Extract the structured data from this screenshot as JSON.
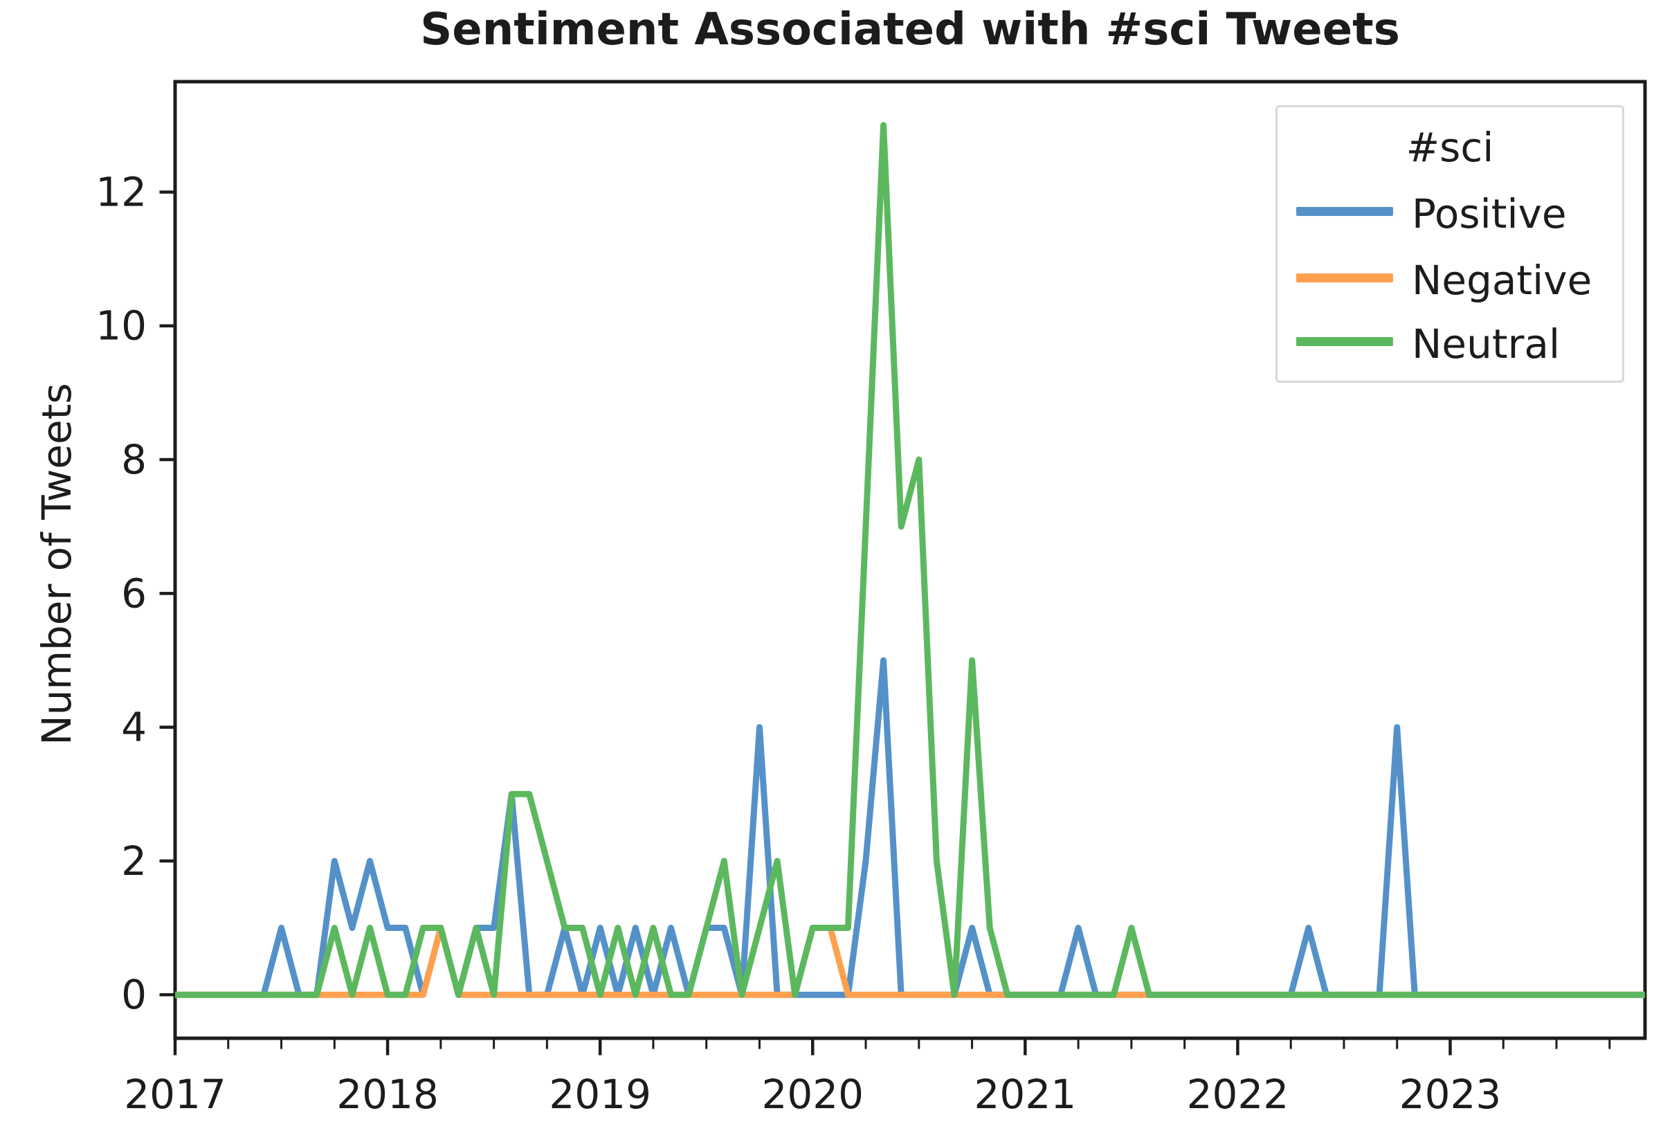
{
  "title": "Sentiment Associated with #sci Tweets",
  "ylabel": "Number of Tweets",
  "legend": {
    "title": "#sci",
    "entries": [
      {
        "label": "Positive",
        "color": "#5591c9"
      },
      {
        "label": "Negative",
        "color": "#ffa04f"
      },
      {
        "label": "Neutral",
        "color": "#5cb85f"
      }
    ]
  },
  "colors": {
    "positive": "#5591c9",
    "negative": "#ffa04f",
    "neutral": "#5cb85f",
    "axis": "#1c1c1c",
    "legend_border": "#d9d9d9",
    "background": "#ffffff"
  },
  "chart_data": {
    "type": "line",
    "title": "Sentiment Associated with #sci Tweets",
    "xlabel": "",
    "ylabel": "Number of Tweets",
    "x_start": "2017-01",
    "x_end": "2023-12",
    "frequency": "monthly",
    "x_tick_labels": [
      "2017",
      "2018",
      "2019",
      "2020",
      "2021",
      "2022",
      "2023"
    ],
    "x_minor_tick_interval_months": 3,
    "y_ticks": [
      0,
      2,
      4,
      6,
      8,
      10,
      12
    ],
    "ylim": [
      -0.65,
      13.65
    ],
    "grid": false,
    "legend_position": "upper right",
    "series": [
      {
        "name": "Positive",
        "color": "#5591c9",
        "values": [
          0,
          0,
          0,
          0,
          0,
          0,
          1,
          0,
          0,
          2,
          1,
          2,
          1,
          1,
          0,
          1,
          0,
          1,
          1,
          3,
          0,
          0,
          1,
          0,
          1,
          0,
          1,
          0,
          1,
          0,
          1,
          1,
          0,
          4,
          0,
          0,
          0,
          0,
          0,
          2,
          5,
          0,
          0,
          0,
          0,
          1,
          0,
          0,
          0,
          0,
          0,
          1,
          0,
          0,
          0,
          0,
          0,
          0,
          0,
          0,
          0,
          0,
          0,
          0,
          1,
          0,
          0,
          0,
          0,
          4,
          0,
          0,
          0,
          0,
          0,
          0,
          0,
          0,
          0,
          0,
          0,
          0,
          0,
          0
        ]
      },
      {
        "name": "Negative",
        "color": "#ffa04f",
        "values": [
          0,
          0,
          0,
          0,
          0,
          0,
          0,
          0,
          0,
          0,
          0,
          0,
          0,
          0,
          0,
          1,
          0,
          0,
          0,
          0,
          0,
          0,
          0,
          0,
          0,
          0,
          0,
          0,
          0,
          0,
          0,
          0,
          0,
          0,
          0,
          0,
          1,
          1,
          0,
          0,
          0,
          0,
          0,
          0,
          0,
          0,
          0,
          0,
          0,
          0,
          0,
          0,
          0,
          0,
          0,
          0,
          0,
          0,
          0,
          0,
          0,
          0,
          0,
          0,
          0,
          0,
          0,
          0,
          0,
          0,
          0,
          0,
          0,
          0,
          0,
          0,
          0,
          0,
          0,
          0,
          0,
          0,
          0,
          0
        ]
      },
      {
        "name": "Neutral",
        "color": "#5cb85f",
        "values": [
          0,
          0,
          0,
          0,
          0,
          0,
          0,
          0,
          0,
          1,
          0,
          1,
          0,
          0,
          1,
          1,
          0,
          1,
          0,
          3,
          3,
          2,
          1,
          1,
          0,
          1,
          0,
          1,
          0,
          0,
          1,
          2,
          0,
          1,
          2,
          0,
          1,
          1,
          1,
          7,
          13,
          7,
          8,
          2,
          0,
          5,
          1,
          0,
          0,
          0,
          0,
          0,
          0,
          0,
          1,
          0,
          0,
          0,
          0,
          0,
          0,
          0,
          0,
          0,
          0,
          0,
          0,
          0,
          0,
          0,
          0,
          0,
          0,
          0,
          0,
          0,
          0,
          0,
          0,
          0,
          0,
          0,
          0,
          0
        ]
      }
    ]
  }
}
